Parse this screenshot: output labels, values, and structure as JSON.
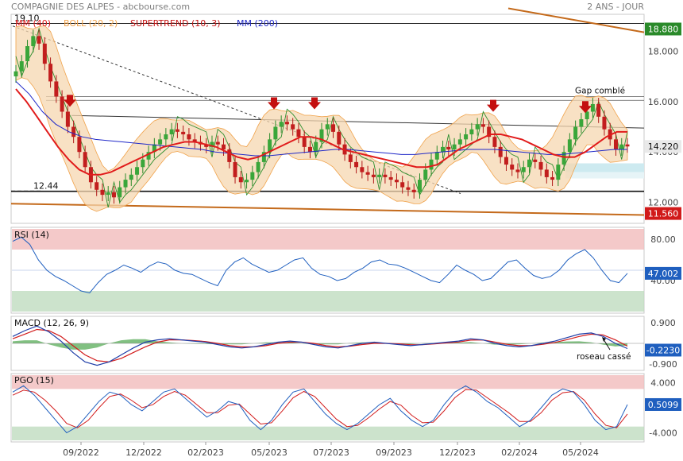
{
  "header": {
    "title": "COMPAGNIE DES ALPES - abcbourse.com",
    "period": "2 ANS - JOUR"
  },
  "legend": [
    {
      "label": "MM (40)",
      "color": "#e11b1b"
    },
    {
      "label": "BOLL (20, 2)",
      "color": "#f0a24a"
    },
    {
      "label": "SUPERTREND (10, 3)",
      "color": "#c41212"
    },
    {
      "label": "MM (200)",
      "color": "#1f28c8"
    }
  ],
  "chart_data": [
    {
      "type": "candlestick",
      "panel": "price",
      "ylim": [
        11.2,
        19.4
      ],
      "yticks": [
        12.0,
        14.0,
        16.0,
        18.0
      ],
      "ytick_labels": [
        "12.000",
        "14.000",
        "16.000",
        "18.000"
      ],
      "x_ticks": [
        "09/2022",
        "12/2022",
        "02/2023",
        "05/2023",
        "07/2023",
        "09/2023",
        "12/2023",
        "02/2024",
        "05/2024"
      ],
      "price_badges": [
        {
          "value": 18.88,
          "text": "18.880",
          "color": "#2a8a2a"
        },
        {
          "value": 14.22,
          "text": "14.220",
          "color": "#e9e9e9"
        },
        {
          "value": 11.56,
          "text": "11.560",
          "color": "#d11a1a"
        }
      ],
      "level_labels": [
        {
          "value": 19.1,
          "text": "19.10"
        },
        {
          "value": 12.44,
          "text": "12.44"
        }
      ],
      "annotations": [
        "Gap comblé"
      ],
      "close_series": [
        17.2,
        17.6,
        18.2,
        18.6,
        18.3,
        17.5,
        16.8,
        16.2,
        15.6,
        15.0,
        14.6,
        14.0,
        13.4,
        12.8,
        12.5,
        12.3,
        12.4,
        12.2,
        12.6,
        12.9,
        13.1,
        13.4,
        13.7,
        14.0,
        14.3,
        14.5,
        14.7,
        14.9,
        14.8,
        14.7,
        14.5,
        14.4,
        14.3,
        14.2,
        14.4,
        14.3,
        14.1,
        13.6,
        13.0,
        12.8,
        12.9,
        13.2,
        13.6,
        14.0,
        14.5,
        15.0,
        15.2,
        15.1,
        14.9,
        14.6,
        14.2,
        14.0,
        14.4,
        14.9,
        15.1,
        14.8,
        14.3,
        13.9,
        13.6,
        13.4,
        13.2,
        13.1,
        13.0,
        13.1,
        13.0,
        12.9,
        12.8,
        12.6,
        12.5,
        12.4,
        12.9,
        13.3,
        13.7,
        14.0,
        14.2,
        14.1,
        14.3,
        14.5,
        14.7,
        14.9,
        15.1,
        15.0,
        14.6,
        14.2,
        13.8,
        13.5,
        13.3,
        13.2,
        13.4,
        13.7,
        13.6,
        13.3,
        13.0,
        12.9,
        13.5,
        14.0,
        14.5,
        15.0,
        15.3,
        15.6,
        15.9,
        15.4,
        14.9,
        14.5,
        14.1,
        14.3,
        14.22
      ],
      "series": [
        {
          "name": "MM (40)",
          "values": [
            16.5,
            16.0,
            15.4,
            14.8,
            14.2,
            13.7,
            13.3,
            13.1,
            13.1,
            13.2,
            13.4,
            13.6,
            13.8,
            14.0,
            14.2,
            14.3,
            14.4,
            14.4,
            14.3,
            14.2,
            14.0,
            13.8,
            13.7,
            13.8,
            14.0,
            14.2,
            14.4,
            14.6,
            14.6,
            14.5,
            14.3,
            14.1,
            14.0,
            13.9,
            13.8,
            13.7,
            13.6,
            13.5,
            13.4,
            13.4,
            13.5,
            13.8,
            14.1,
            14.3,
            14.5,
            14.7,
            14.7,
            14.6,
            14.5,
            14.3,
            14.1,
            13.9,
            13.8,
            13.8,
            14.0,
            14.3,
            14.6,
            14.8,
            14.8
          ]
        },
        {
          "name": "MM (200)",
          "values": [
            16.8,
            16.3,
            15.6,
            15.1,
            14.8,
            14.6,
            14.5,
            14.45,
            14.4,
            14.35,
            14.3,
            14.25,
            14.2,
            14.15,
            14.1,
            14.0,
            13.95,
            13.9,
            13.85,
            13.85,
            13.9,
            13.95,
            14.0,
            14.05,
            14.1,
            14.1,
            14.05,
            14.0,
            13.95,
            13.9,
            13.9,
            13.95,
            14.0,
            14.05,
            14.1,
            14.1,
            14.1,
            14.05,
            14.0,
            13.95,
            13.9,
            13.9,
            13.95,
            14.0,
            14.05,
            14.1,
            14.1
          ]
        }
      ],
      "signals": [
        "sell-arrow",
        "sell-arrow",
        "sell-arrow",
        "sell-arrow",
        "sell-arrow"
      ]
    },
    {
      "type": "line",
      "panel": "rsi",
      "title": "RSI (14)",
      "ylim": [
        10,
        90
      ],
      "yticks": [
        40,
        80
      ],
      "ytick_labels": [
        "40.00",
        "80.00"
      ],
      "badge": "47.002",
      "series": [
        {
          "name": "RSI (14)",
          "values": [
            78,
            82,
            75,
            60,
            50,
            44,
            40,
            35,
            30,
            28,
            38,
            46,
            50,
            55,
            52,
            48,
            54,
            58,
            56,
            50,
            47,
            46,
            42,
            38,
            35,
            50,
            58,
            62,
            56,
            52,
            48,
            50,
            55,
            60,
            62,
            52,
            46,
            44,
            40,
            42,
            48,
            52,
            58,
            60,
            56,
            55,
            52,
            48,
            44,
            40,
            38,
            46,
            55,
            50,
            46,
            40,
            42,
            50,
            58,
            60,
            52,
            45,
            42,
            44,
            50,
            60,
            66,
            70,
            62,
            50,
            40,
            38,
            47
          ]
        }
      ]
    },
    {
      "type": "line",
      "panel": "macd",
      "title": "MACD (12, 26, 9)",
      "ylim": [
        -1.1,
        1.1
      ],
      "yticks": [
        0.9,
        -0.9
      ],
      "ytick_labels": [
        "0.900",
        "-0.900"
      ],
      "badge": "-0.2230",
      "annotations": [
        "roseau cassé"
      ],
      "series": [
        {
          "name": "MACD",
          "values": [
            0.3,
            0.55,
            0.75,
            0.5,
            0.1,
            -0.4,
            -0.8,
            -0.95,
            -0.8,
            -0.5,
            -0.2,
            0.05,
            0.15,
            0.2,
            0.15,
            0.1,
            0.05,
            -0.05,
            -0.15,
            -0.2,
            -0.15,
            -0.05,
            0.05,
            0.1,
            0.05,
            -0.05,
            -0.15,
            -0.2,
            -0.1,
            0.0,
            0.05,
            0.0,
            -0.05,
            -0.1,
            -0.05,
            0.0,
            0.05,
            0.1,
            0.2,
            0.15,
            0.0,
            -0.1,
            -0.15,
            -0.1,
            0.0,
            0.1,
            0.25,
            0.4,
            0.45,
            0.3,
            0.0,
            -0.223
          ]
        },
        {
          "name": "Signal",
          "values": [
            0.2,
            0.4,
            0.6,
            0.55,
            0.3,
            -0.1,
            -0.5,
            -0.75,
            -0.8,
            -0.65,
            -0.4,
            -0.15,
            0.05,
            0.15,
            0.15,
            0.12,
            0.08,
            0.0,
            -0.1,
            -0.15,
            -0.15,
            -0.1,
            0.0,
            0.05,
            0.05,
            0.0,
            -0.1,
            -0.15,
            -0.12,
            -0.05,
            0.0,
            0.0,
            -0.02,
            -0.06,
            -0.06,
            -0.02,
            0.02,
            0.06,
            0.14,
            0.15,
            0.06,
            -0.04,
            -0.1,
            -0.1,
            -0.04,
            0.04,
            0.16,
            0.3,
            0.4,
            0.36,
            0.15,
            -0.12
          ]
        }
      ]
    },
    {
      "type": "line",
      "panel": "pgo",
      "title": "PGO (15)",
      "ylim": [
        -5.2,
        5.2
      ],
      "yticks": [
        4.0,
        -4.0
      ],
      "ytick_labels": [
        "4.000",
        "-4.000"
      ],
      "badge": "0.5099",
      "series": [
        {
          "name": "PGO (15)",
          "values": [
            2.5,
            3.5,
            2.0,
            0.0,
            -2.0,
            -4.0,
            -3.0,
            -1.0,
            1.0,
            2.5,
            2.0,
            0.5,
            -0.5,
            1.0,
            2.5,
            3.0,
            1.5,
            0.0,
            -1.5,
            -0.5,
            1.0,
            0.5,
            -2.0,
            -3.5,
            -2.0,
            0.5,
            2.5,
            3.0,
            1.0,
            -1.0,
            -2.5,
            -3.5,
            -2.5,
            -1.0,
            0.5,
            1.5,
            -0.5,
            -2.0,
            -3.0,
            -2.0,
            0.5,
            2.5,
            3.5,
            2.5,
            1.0,
            0.0,
            -1.5,
            -3.0,
            -2.0,
            0.0,
            2.0,
            3.0,
            2.5,
            0.5,
            -2.0,
            -3.5,
            -3.0,
            0.51
          ]
        },
        {
          "name": "Signal",
          "values": [
            2.0,
            2.8,
            2.5,
            1.2,
            -0.5,
            -2.5,
            -3.2,
            -2.0,
            0.0,
            1.8,
            2.2,
            1.2,
            0.0,
            0.5,
            1.8,
            2.6,
            2.0,
            0.6,
            -0.8,
            -0.8,
            0.4,
            0.6,
            -1.0,
            -2.6,
            -2.4,
            -0.5,
            1.6,
            2.6,
            1.8,
            0.0,
            -1.8,
            -3.0,
            -2.8,
            -1.6,
            -0.2,
            1.0,
            0.4,
            -1.2,
            -2.4,
            -2.3,
            -0.5,
            1.6,
            2.9,
            2.8,
            1.6,
            0.4,
            -0.8,
            -2.2,
            -2.2,
            -0.8,
            1.2,
            2.4,
            2.6,
            1.2,
            -1.0,
            -2.8,
            -3.2,
            -1.0
          ]
        }
      ]
    }
  ]
}
